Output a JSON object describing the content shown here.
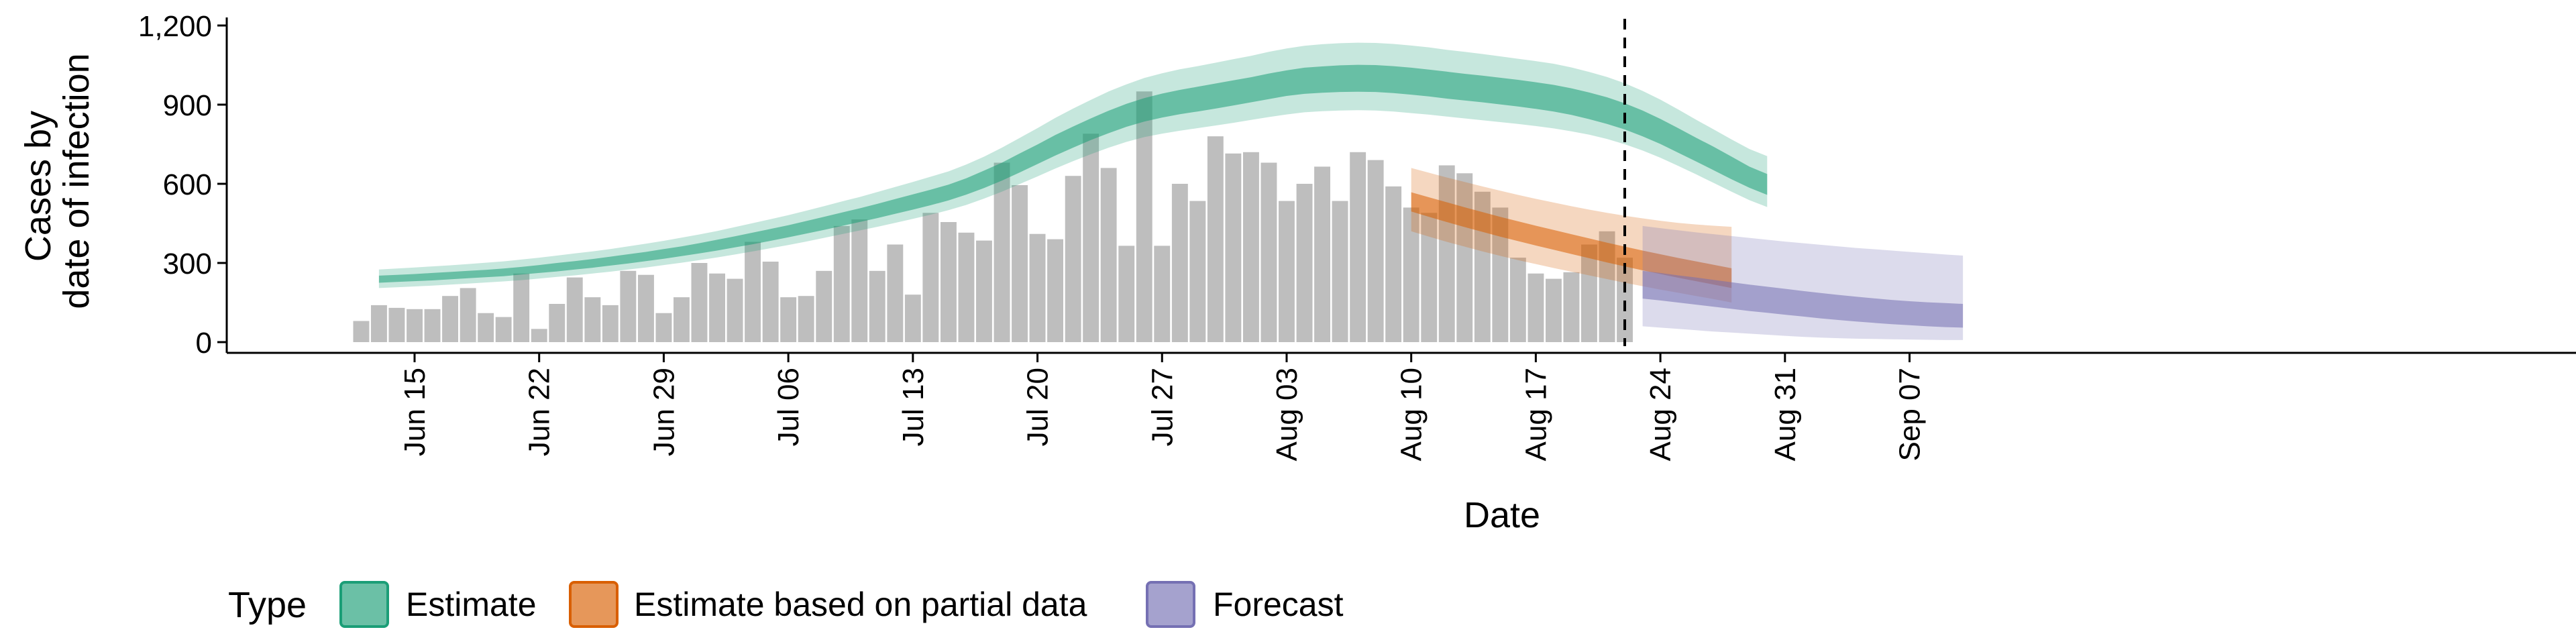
{
  "chart_data": {
    "type": "bar+ribbon",
    "xlabel": "Date",
    "ylabel_lines": [
      "Cases by",
      "date of infection"
    ],
    "ylim": [
      0,
      1200
    ],
    "yticks": [
      0,
      300,
      600,
      900,
      1200
    ],
    "ytick_labels": [
      "0",
      "300",
      "600",
      "900",
      "1,200"
    ],
    "xlim": [
      "2020-06-10",
      "2020-09-09"
    ],
    "xticks": [
      "2020-06-15",
      "2020-06-22",
      "2020-06-29",
      "2020-07-06",
      "2020-07-13",
      "2020-07-20",
      "2020-07-27",
      "2020-08-03",
      "2020-08-10",
      "2020-08-17",
      "2020-08-24",
      "2020-08-31",
      "2020-09-07"
    ],
    "xtick_labels": [
      "Jun 15",
      "Jun 22",
      "Jun 29",
      "Jul 06",
      "Jul 13",
      "Jul 20",
      "Jul 27",
      "Aug 03",
      "Aug 10",
      "Aug 17",
      "Aug 24",
      "Aug 31",
      "Sep 07"
    ],
    "vline_date": "2020-08-22",
    "bars": {
      "start_date": "2020-06-12",
      "color": "#bebebe",
      "values": [
        80,
        140,
        130,
        125,
        125,
        175,
        205,
        110,
        95,
        260,
        50,
        145,
        245,
        170,
        140,
        270,
        255,
        110,
        170,
        300,
        260,
        240,
        380,
        305,
        170,
        175,
        270,
        440,
        465,
        270,
        370,
        180,
        490,
        455,
        415,
        385,
        680,
        595,
        410,
        390,
        630,
        790,
        660,
        365,
        950,
        365,
        600,
        535,
        780,
        715,
        720,
        680,
        535,
        600,
        665,
        535,
        720,
        690,
        590,
        510,
        490,
        670,
        640,
        570,
        510,
        320,
        260,
        240,
        265,
        370,
        420,
        320
      ]
    },
    "series": [
      {
        "name": "Estimate",
        "color": "#1b9e77",
        "start_date": "2020-06-13",
        "median": [
          238,
          241,
          245,
          248,
          252,
          256,
          260,
          264,
          270,
          277,
          284,
          291,
          298,
          306,
          315,
          324,
          334,
          344,
          355,
          367,
          380,
          393,
          406,
          420,
          435,
          450,
          465,
          481,
          497,
          514,
          531,
          548,
          567,
          590,
          617,
          646,
          679,
          712,
          746,
          777,
          807,
          835,
          860,
          881,
          897,
          910,
          921,
          932,
          944,
          956,
          969,
          981,
          990,
          995,
          998,
          1000,
          999,
          995,
          989,
          982,
          974,
          967,
          960,
          952,
          944,
          935,
          925,
          912,
          896,
          878,
          856,
          829,
          799,
          765,
          730,
          695,
          660,
          625,
          598
        ],
        "inner_lo": [
          225,
          228,
          231,
          234,
          238,
          242,
          246,
          250,
          256,
          262,
          268,
          275,
          282,
          290,
          298,
          307,
          316,
          326,
          336,
          347,
          359,
          371,
          384,
          397,
          411,
          425,
          440,
          455,
          470,
          486,
          502,
          519,
          537,
          559,
          584,
          612,
          643,
          675,
          707,
          737,
          766,
          792,
          816,
          836,
          851,
          864,
          874,
          885,
          897,
          909,
          921,
          933,
          941,
          945,
          948,
          949,
          948,
          944,
          938,
          931,
          923,
          916,
          909,
          901,
          893,
          884,
          874,
          861,
          845,
          827,
          806,
          780,
          751,
          718,
          685,
          651,
          617,
          585,
          558
        ],
        "inner_hi": [
          252,
          255,
          258,
          262,
          266,
          270,
          274,
          279,
          285,
          292,
          300,
          307,
          315,
          324,
          333,
          342,
          353,
          363,
          375,
          388,
          401,
          415,
          429,
          443,
          459,
          475,
          491,
          507,
          524,
          542,
          560,
          578,
          597,
          621,
          650,
          680,
          715,
          749,
          785,
          817,
          848,
          877,
          903,
          925,
          942,
          956,
          968,
          980,
          992,
          1004,
          1018,
          1030,
          1040,
          1045,
          1049,
          1051,
          1050,
          1046,
          1040,
          1033,
          1025,
          1017,
          1010,
          1002,
          994,
          985,
          975,
          962,
          946,
          928,
          905,
          878,
          846,
          811,
          775,
          740,
          703,
          665,
          637
        ],
        "outer_lo": [
          205,
          208,
          211,
          214,
          218,
          222,
          226,
          230,
          235,
          241,
          247,
          253,
          260,
          267,
          275,
          283,
          292,
          301,
          311,
          321,
          332,
          344,
          356,
          368,
          381,
          395,
          409,
          423,
          437,
          452,
          467,
          483,
          500,
          520,
          544,
          570,
          599,
          628,
          658,
          686,
          712,
          737,
          759,
          777,
          790,
          801,
          811,
          821,
          831,
          842,
          853,
          863,
          871,
          875,
          878,
          879,
          878,
          874,
          868,
          862,
          855,
          848,
          841,
          834,
          827,
          819,
          810,
          799,
          786,
          770,
          750,
          726,
          699,
          668,
          636,
          603,
          570,
          538,
          512
        ],
        "outer_hi": [
          275,
          279,
          283,
          287,
          291,
          296,
          301,
          306,
          313,
          320,
          328,
          336,
          344,
          353,
          363,
          373,
          384,
          396,
          408,
          421,
          436,
          451,
          466,
          481,
          498,
          515,
          533,
          550,
          569,
          588,
          607,
          627,
          647,
          673,
          703,
          737,
          774,
          811,
          850,
          885,
          918,
          950,
          977,
          1001,
          1019,
          1034,
          1046,
          1059,
          1072,
          1085,
          1100,
          1113,
          1123,
          1129,
          1133,
          1135,
          1134,
          1130,
          1124,
          1117,
          1108,
          1100,
          1092,
          1083,
          1074,
          1065,
          1055,
          1041,
          1024,
          1005,
          981,
          952,
          919,
          882,
          843,
          806,
          768,
          732,
          705
        ]
      },
      {
        "name": "Estimate based on partial data",
        "color": "#d95f02",
        "start_date": "2020-08-10",
        "median": [
          530,
          510,
          490,
          470,
          452,
          434,
          417,
          400,
          384,
          368,
          352,
          336,
          321,
          306,
          292,
          278,
          265,
          252,
          240
        ],
        "inner_lo": [
          495,
          475,
          455,
          436,
          418,
          400,
          383,
          366,
          350,
          334,
          318,
          302,
          287,
          272,
          258,
          244,
          231,
          218,
          205
        ],
        "inner_hi": [
          568,
          549,
          530,
          511,
          493,
          475,
          458,
          441,
          425,
          409,
          393,
          377,
          362,
          347,
          333,
          319,
          306,
          293,
          280
        ],
        "outer_lo": [
          420,
          400,
          380,
          362,
          344,
          327,
          311,
          296,
          281,
          267,
          253,
          239,
          225,
          212,
          199,
          187,
          175,
          163,
          150
        ],
        "outer_hi": [
          660,
          642,
          624,
          607,
          590,
          574,
          558,
          543,
          529,
          515,
          502,
          490,
          479,
          469,
          460,
          452,
          446,
          441,
          437
        ]
      },
      {
        "name": "Forecast",
        "color": "#7570b3",
        "start_date": "2020-08-23",
        "median": [
          215,
          207,
          199,
          191,
          182,
          173,
          164,
          156,
          149,
          142,
          135,
          128,
          122,
          116,
          110,
          105,
          101,
          98,
          95
        ],
        "inner_lo": [
          165,
          158,
          150,
          142,
          134,
          126,
          118,
          111,
          104,
          97,
          90,
          84,
          78,
          73,
          68,
          64,
          60,
          57,
          55
        ],
        "inner_hi": [
          270,
          262,
          253,
          245,
          236,
          227,
          218,
          210,
          202,
          194,
          186,
          179,
          172,
          166,
          160,
          155,
          151,
          148,
          145
        ],
        "outer_lo": [
          60,
          55,
          50,
          45,
          40,
          36,
          32,
          28,
          24,
          20,
          17,
          15,
          13,
          12,
          11,
          10,
          9,
          8,
          8
        ],
        "outer_hi": [
          440,
          432,
          424,
          416,
          409,
          402,
          395,
          388,
          381,
          375,
          369,
          363,
          357,
          352,
          347,
          342,
          337,
          332,
          328
        ]
      }
    ],
    "legend": {
      "title": "Type",
      "position": "bottom",
      "entries": [
        "Estimate",
        "Estimate based on partial data",
        "Forecast"
      ]
    }
  }
}
